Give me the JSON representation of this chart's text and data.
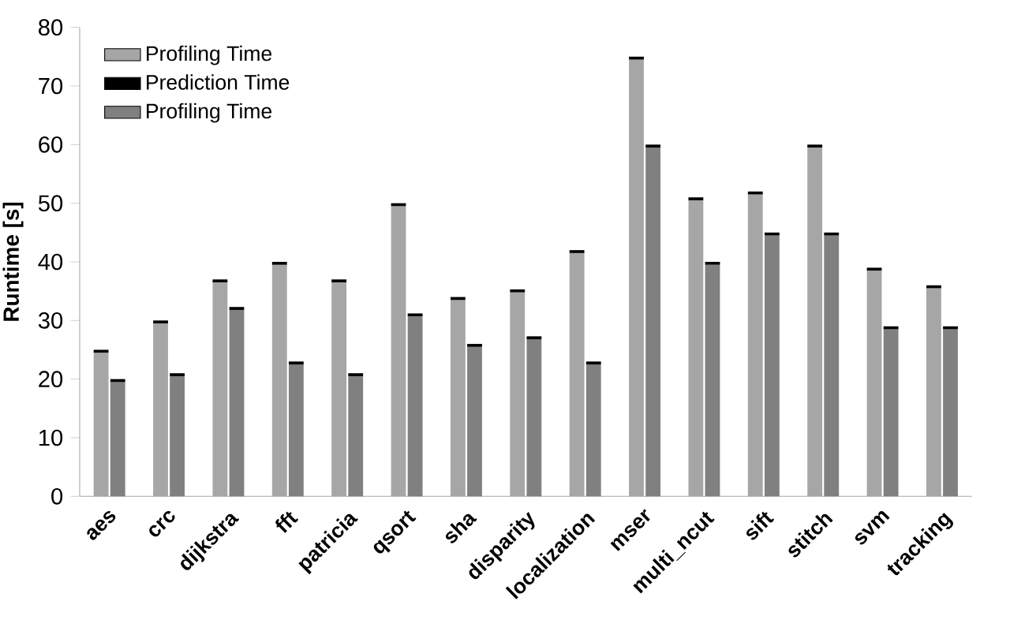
{
  "chart_data": {
    "type": "bar",
    "ylabel": "Runtime [s]",
    "categories": [
      "aes",
      "crc",
      "dijkstra",
      "fft",
      "patricia",
      "qsort",
      "sha",
      "disparity",
      "localization",
      "mser",
      "multi_ncut",
      "sift",
      "stitch",
      "svm",
      "tracking"
    ],
    "series": [
      {
        "name": "Profiling Time",
        "color": "#a6a6a6",
        "values": [
          24.5,
          29.5,
          36.5,
          39.5,
          36.5,
          49.5,
          33.5,
          34.8,
          41.5,
          74.5,
          50.5,
          51.5,
          59.5,
          38.5,
          35.5
        ]
      },
      {
        "name": "Prediction Time",
        "color": "#000000",
        "values": [
          0.5,
          0.5,
          0.5,
          0.5,
          0.5,
          0.5,
          0.5,
          0.5,
          0.5,
          0.5,
          0.5,
          0.5,
          0.5,
          0.5,
          0.5
        ],
        "base": [
          24.5,
          29.5,
          36.5,
          39.5,
          36.5,
          49.5,
          33.5,
          34.8,
          41.5,
          74.5,
          50.5,
          51.5,
          59.5,
          38.5,
          35.5
        ]
      },
      {
        "name": "Profiling Time",
        "color": "#808080",
        "values": [
          19.5,
          20.5,
          31.8,
          22.5,
          20.5,
          30.7,
          25.5,
          26.8,
          22.5,
          59.5,
          39.5,
          44.5,
          44.5,
          28.5,
          28.5
        ]
      },
      {
        "color": "#000000",
        "values": [
          0.5,
          0.5,
          0.5,
          0.5,
          0.5,
          0.5,
          0.5,
          0.5,
          0.5,
          0.5,
          0.5,
          0.5,
          0.5,
          0.5,
          0.5
        ],
        "base": [
          19.5,
          20.5,
          31.8,
          22.5,
          20.5,
          30.7,
          25.5,
          26.8,
          22.5,
          59.5,
          39.5,
          44.5,
          44.5,
          28.5,
          28.5
        ]
      }
    ],
    "ylim": [
      0,
      80
    ],
    "yticks": [
      0,
      10,
      20,
      30,
      40,
      50,
      60,
      70,
      80
    ],
    "grid": false,
    "legend": "top left"
  }
}
